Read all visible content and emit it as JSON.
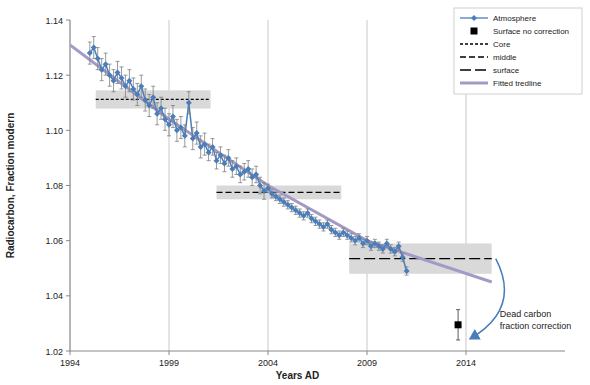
{
  "chart_data": {
    "type": "line",
    "x_label": "Years AD",
    "y_label": "Radiocarbon, Fraction modern",
    "xlim": [
      1994,
      2019
    ],
    "xticks": [
      1994,
      1999,
      2004,
      2009,
      2014
    ],
    "ylim": [
      1.02,
      1.14
    ],
    "yticks": [
      1.02,
      1.04,
      1.06,
      1.08,
      {
        "value": 1.1,
        "label": "1.10"
      },
      1.12,
      1.14
    ],
    "grid": "x",
    "legend": "upper right",
    "annotation": [
      "Dead carbon",
      "fraction correction"
    ],
    "series": [
      {
        "name": "Atmosphere",
        "type": "line",
        "marker": "diamond",
        "color": "#4a7ebb",
        "x": [
          1995,
          1995.2,
          1995.4,
          1995.6,
          1995.8,
          1996,
          1996.2,
          1996.4,
          1996.6,
          1996.8,
          1997,
          1997.2,
          1997.4,
          1997.6,
          1997.8,
          1998,
          1998.2,
          1998.4,
          1998.6,
          1998.8,
          1999,
          1999.2,
          1999.4,
          1999.6,
          1999.8,
          2000,
          2000.2,
          2000.4,
          2000.6,
          2000.8,
          2001,
          2001.2,
          2001.4,
          2001.6,
          2001.8,
          2002,
          2002.2,
          2002.4,
          2002.6,
          2002.8,
          2003,
          2003.2,
          2003.4,
          2003.6,
          2003.8,
          2004,
          2004.2,
          2004.4,
          2004.6,
          2004.8,
          2005,
          2005.2,
          2005.4,
          2005.6,
          2005.8,
          2006,
          2006.2,
          2006.4,
          2006.6,
          2006.8,
          2007,
          2007.2,
          2007.4,
          2007.6,
          2007.8,
          2008,
          2008.2,
          2008.4,
          2008.6,
          2008.8,
          2009,
          2009.2,
          2009.4,
          2009.6,
          2009.8,
          2010,
          2010.2,
          2010.4,
          2010.6,
          2010.8,
          2011
        ],
        "values": [
          1.128,
          1.13,
          1.126,
          1.122,
          1.124,
          1.12,
          1.118,
          1.121,
          1.119,
          1.116,
          1.118,
          1.115,
          1.113,
          1.116,
          1.111,
          1.109,
          1.112,
          1.106,
          1.108,
          1.104,
          1.102,
          1.105,
          1.1,
          1.101,
          1.098,
          1.11,
          1.097,
          1.099,
          1.094,
          1.095,
          1.092,
          1.094,
          1.089,
          1.091,
          1.088,
          1.09,
          1.086,
          1.087,
          1.084,
          1.085,
          1.086,
          1.083,
          1.084,
          1.08,
          1.078,
          1.079,
          1.077,
          1.076,
          1.075,
          1.074,
          1.073,
          1.072,
          1.071,
          1.07,
          1.069,
          1.07,
          1.068,
          1.067,
          1.066,
          1.065,
          1.066,
          1.064,
          1.063,
          1.062,
          1.063,
          1.062,
          1.061,
          1.06,
          1.061,
          1.059,
          1.06,
          1.058,
          1.059,
          1.058,
          1.057,
          1.059,
          1.057,
          1.056,
          1.058,
          1.054,
          1.049
        ],
        "errors": [
          0.004,
          0.004,
          0.004,
          0.004,
          0.004,
          0.004,
          0.004,
          0.004,
          0.004,
          0.004,
          0.004,
          0.004,
          0.004,
          0.004,
          0.004,
          0.004,
          0.004,
          0.004,
          0.004,
          0.004,
          0.004,
          0.004,
          0.004,
          0.004,
          0.004,
          0.004,
          0.004,
          0.004,
          0.004,
          0.004,
          0.003,
          0.003,
          0.003,
          0.003,
          0.003,
          0.003,
          0.003,
          0.003,
          0.003,
          0.003,
          0.003,
          0.003,
          0.003,
          0.003,
          0.003,
          0.0015,
          0.0015,
          0.0015,
          0.0015,
          0.0015,
          0.0015,
          0.0015,
          0.0015,
          0.0015,
          0.0015,
          0.0015,
          0.0015,
          0.0015,
          0.0015,
          0.0015,
          0.0015,
          0.0015,
          0.0015,
          0.0015,
          0.0015,
          0.0015,
          0.0015,
          0.0015,
          0.0015,
          0.0015,
          0.0015,
          0.0015,
          0.0015,
          0.0015,
          0.0015,
          0.0015,
          0.0015,
          0.0015,
          0.0015,
          0.0015,
          0.0015
        ]
      },
      {
        "name": "Surface no correction",
        "type": "scatter",
        "marker": "square",
        "color": "#000000",
        "x": [
          2013.6
        ],
        "values": [
          1.0295
        ],
        "errors": [
          0.0055
        ]
      },
      {
        "name": "Core",
        "type": "line",
        "line_style": "dotted",
        "color": "#000000",
        "x": [
          1995.3,
          2001.1
        ],
        "values": [
          1.1112,
          1.1112
        ],
        "band": [
          0.0033,
          0.0033
        ]
      },
      {
        "name": "middle",
        "type": "line",
        "line_style": "dashed",
        "color": "#000000",
        "x": [
          2001.4,
          2007.7
        ],
        "values": [
          1.0775,
          1.0775
        ],
        "band": [
          0.0025,
          0.0025
        ]
      },
      {
        "name": "surface",
        "type": "line",
        "line_style": "long-dash",
        "color": "#000000",
        "x": [
          2008.1,
          2015.3
        ],
        "values": [
          1.0535,
          1.0535
        ],
        "band": [
          0.0055,
          0.0055
        ]
      },
      {
        "name": "Fitted tredline",
        "type": "line",
        "line_style": "solid",
        "color": "#a49ac6",
        "x": [
          1994,
          1999,
          2004,
          2009,
          2015.3
        ],
        "values": [
          1.131,
          1.104,
          1.08,
          1.06,
          1.045
        ]
      }
    ]
  }
}
